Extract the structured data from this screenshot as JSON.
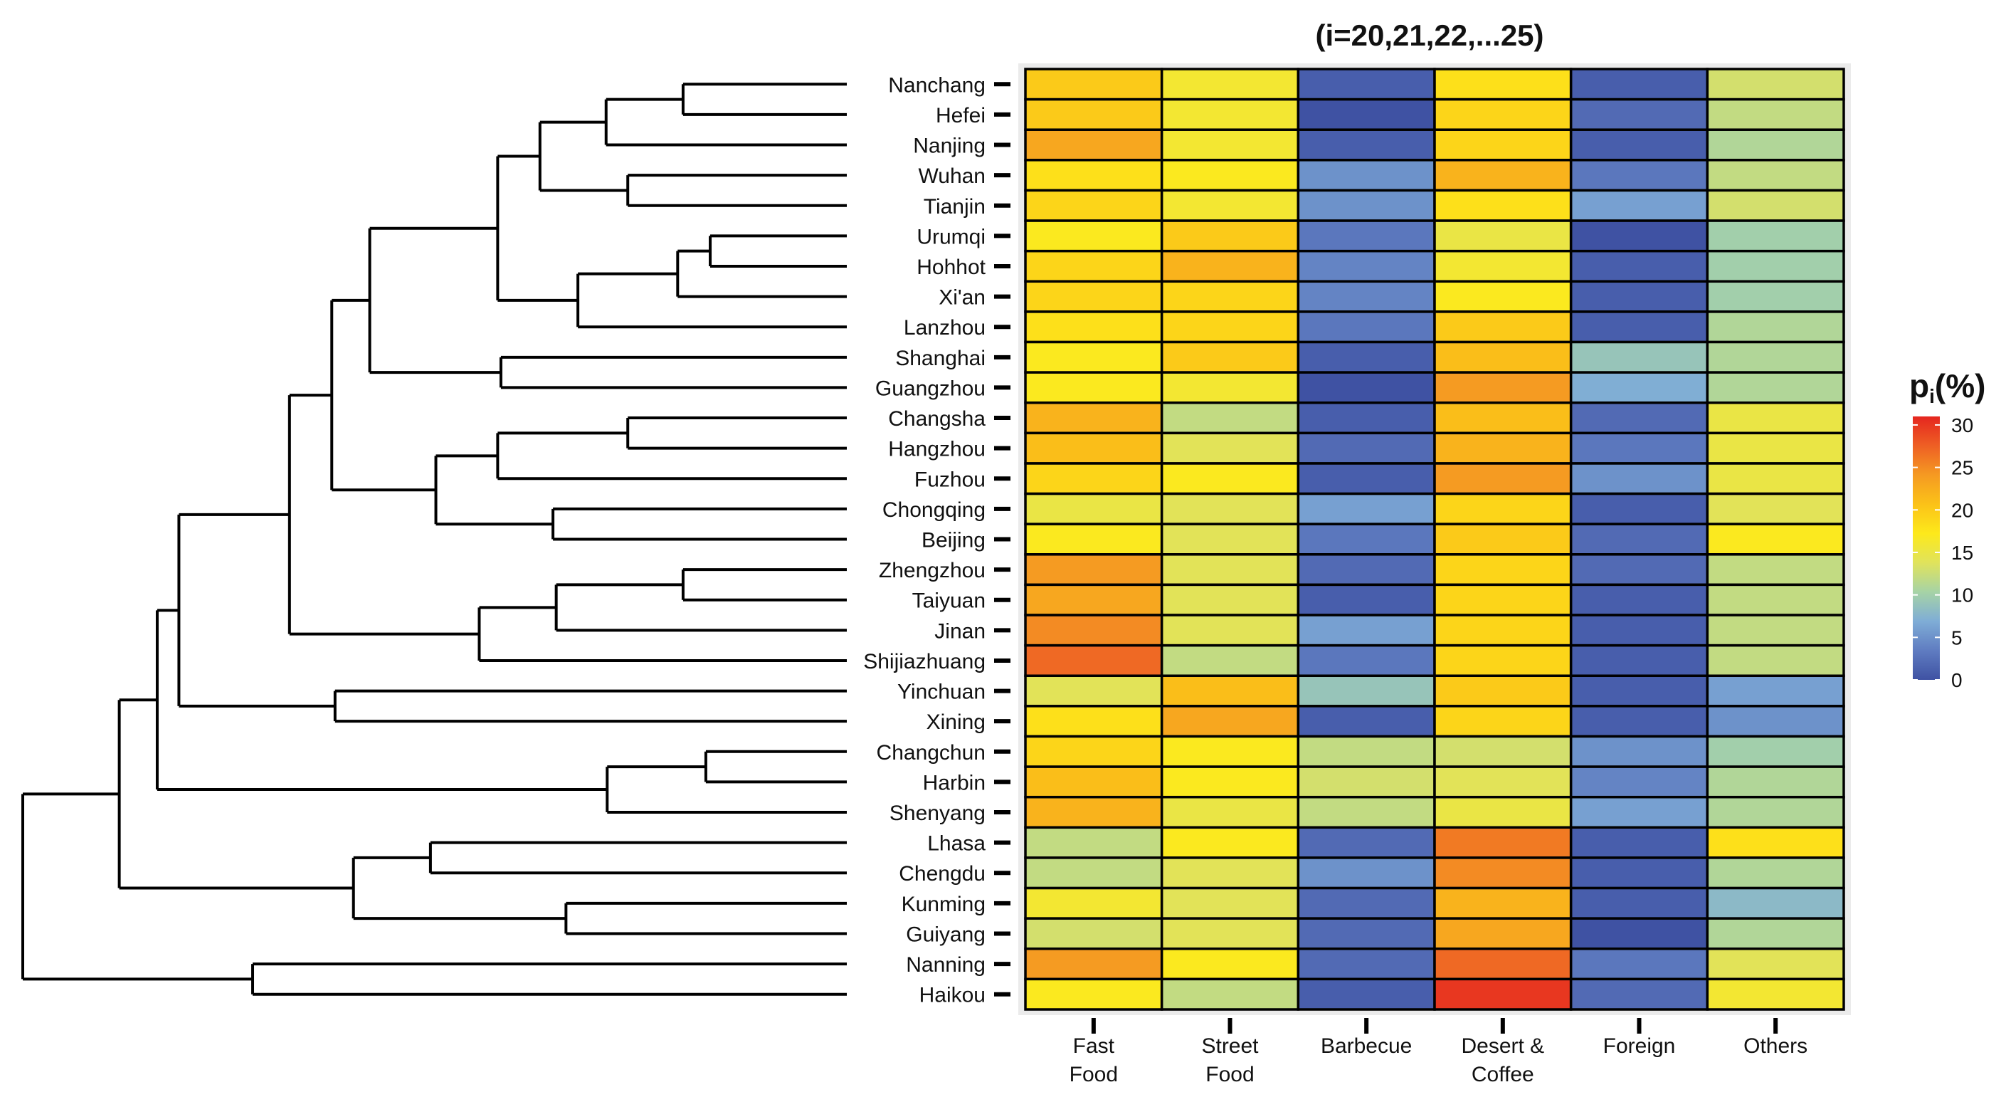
{
  "chart_data": {
    "type": "heatmap",
    "title": "(i=20,21,22,...25)",
    "rows": [
      "Nanchang",
      "Hefei",
      "Nanjing",
      "Wuhan",
      "Tianjin",
      "Urumqi",
      "Hohhot",
      "Xi'an",
      "Lanzhou",
      "Shanghai",
      "Guangzhou",
      "Changsha",
      "Hangzhou",
      "Fuzhou",
      "Chongqing",
      "Beijing",
      "Zhengzhou",
      "Taiyuan",
      "Jinan",
      "Shijiazhuang",
      "Yinchuan",
      "Xining",
      "Changchun",
      "Harbin",
      "Shenyang",
      "Lhasa",
      "Chengdu",
      "Kunming",
      "Guiyang",
      "Nanning",
      "Haikou"
    ],
    "columns": [
      {
        "line1": "Fast",
        "line2": "Food"
      },
      {
        "line1": "Street",
        "line2": "Food"
      },
      {
        "line1": "Barbecue",
        "line2": ""
      },
      {
        "line1": "Desert &",
        "line2": "Coffee"
      },
      {
        "line1": "Foreign",
        "line2": ""
      },
      {
        "line1": "Others",
        "line2": ""
      }
    ],
    "values": [
      [
        20,
        16,
        1,
        18,
        1,
        13
      ],
      [
        20,
        16,
        0,
        19,
        2,
        12
      ],
      [
        23,
        16,
        1,
        19,
        1,
        11
      ],
      [
        18,
        17,
        5,
        22,
        3,
        12
      ],
      [
        19,
        16,
        5,
        18,
        6,
        13
      ],
      [
        17,
        20,
        3,
        15,
        0,
        10
      ],
      [
        19,
        22,
        4,
        16,
        1,
        10
      ],
      [
        19,
        19,
        4,
        17,
        1,
        10
      ],
      [
        18,
        19,
        3,
        20,
        1,
        11
      ],
      [
        17,
        20,
        1,
        21,
        9,
        11
      ],
      [
        17,
        16,
        0,
        24,
        7,
        11
      ],
      [
        22,
        12,
        1,
        21,
        2,
        15
      ],
      [
        21,
        14,
        2,
        22,
        3,
        15
      ],
      [
        19,
        17,
        1,
        24,
        5,
        15
      ],
      [
        15,
        14,
        6,
        19,
        1,
        14
      ],
      [
        17,
        14,
        3,
        20,
        2,
        17
      ],
      [
        24,
        14,
        2,
        19,
        2,
        12
      ],
      [
        23,
        14,
        1,
        19,
        1,
        12
      ],
      [
        25,
        14,
        6,
        19,
        1,
        12
      ],
      [
        27,
        12,
        3,
        19,
        1,
        12
      ],
      [
        14,
        21,
        9,
        20,
        1,
        6
      ],
      [
        18,
        23,
        1,
        19,
        1,
        5
      ],
      [
        19,
        17,
        12,
        13,
        5,
        10
      ],
      [
        21,
        17,
        13,
        14,
        4,
        11
      ],
      [
        22,
        15,
        12,
        15,
        6,
        11
      ],
      [
        12,
        17,
        2,
        26,
        1,
        18
      ],
      [
        12,
        14,
        5,
        25,
        1,
        11
      ],
      [
        16,
        14,
        2,
        22,
        1,
        8
      ],
      [
        13,
        14,
        2,
        23,
        0,
        11
      ],
      [
        24,
        17,
        2,
        27,
        3,
        14
      ],
      [
        17,
        12,
        1,
        30,
        2,
        16
      ]
    ],
    "legend": {
      "title_main": "p",
      "title_sub": "i",
      "title_suffix": "(%)",
      "min": 0,
      "max": 31,
      "ticks": [
        30,
        25,
        20,
        15,
        10,
        5,
        0
      ],
      "colors": [
        "#3f52a3",
        "#5f7cc1",
        "#7fadd6",
        "#a6d3a6",
        "#e0e35c",
        "#fde91b",
        "#fbc218",
        "#f59a22",
        "#ee5f24",
        "#e5261f"
      ]
    },
    "dendrogram": {
      "leaves": [
        "Nanchang",
        "Hefei",
        "Nanjing",
        "Wuhan",
        "Tianjin",
        "Urumqi",
        "Hohhot",
        "Xi'an",
        "Lanzhou",
        "Shanghai",
        "Guangzhou",
        "Changsha",
        "Hangzhou",
        "Fuzhou",
        "Chongqing",
        "Beijing",
        "Zhengzhou",
        "Taiyuan",
        "Jinan",
        "Shijiazhuang",
        "Yinchuan",
        "Xining",
        "Changchun",
        "Harbin",
        "Shenyang",
        "Lhasa",
        "Chengdu",
        "Kunming",
        "Guiyang",
        "Nanning",
        "Haikou"
      ],
      "merges": [
        {
          "a": "L0",
          "b": "L1",
          "h": 1.51
        },
        {
          "a": "M0",
          "b": "L2",
          "h": 2.22
        },
        {
          "a": "L3",
          "b": "L4",
          "h": 2.02
        },
        {
          "a": "M1",
          "b": "M2",
          "h": 2.83
        },
        {
          "a": "L5",
          "b": "L6",
          "h": 1.26
        },
        {
          "a": "M4",
          "b": "L7",
          "h": 1.56
        },
        {
          "a": "M5",
          "b": "L8",
          "h": 2.48
        },
        {
          "a": "M3",
          "b": "M6",
          "h": 3.22
        },
        {
          "a": "L9",
          "b": "L10",
          "h": 3.19
        },
        {
          "a": "M7",
          "b": "M8",
          "h": 4.4
        },
        {
          "a": "L11",
          "b": "L12",
          "h": 2.02
        },
        {
          "a": "M10",
          "b": "L13",
          "h": 3.22
        },
        {
          "a": "L14",
          "b": "L15",
          "h": 2.71
        },
        {
          "a": "M11",
          "b": "M12",
          "h": 3.79
        },
        {
          "a": "M9",
          "b": "M13",
          "h": 4.75
        },
        {
          "a": "L16",
          "b": "L17",
          "h": 1.51
        },
        {
          "a": "M15",
          "b": "L18",
          "h": 2.68
        },
        {
          "a": "M16",
          "b": "L19",
          "h": 3.39
        },
        {
          "a": "M14",
          "b": "M17",
          "h": 5.14
        },
        {
          "a": "L20",
          "b": "L21",
          "h": 4.72
        },
        {
          "a": "M18",
          "b": "M19",
          "h": 6.16
        },
        {
          "a": "L22",
          "b": "L23",
          "h": 1.3
        },
        {
          "a": "M21",
          "b": "L24",
          "h": 2.21
        },
        {
          "a": "M20",
          "b": "M22",
          "h": 6.36
        },
        {
          "a": "L25",
          "b": "L26",
          "h": 3.84
        },
        {
          "a": "L27",
          "b": "L28",
          "h": 2.59
        },
        {
          "a": "M24",
          "b": "M25",
          "h": 4.55
        },
        {
          "a": "M23",
          "b": "M26",
          "h": 6.71
        },
        {
          "a": "L29",
          "b": "L30",
          "h": 5.48
        },
        {
          "a": "M27",
          "b": "M28",
          "h": 7.6
        }
      ]
    }
  }
}
